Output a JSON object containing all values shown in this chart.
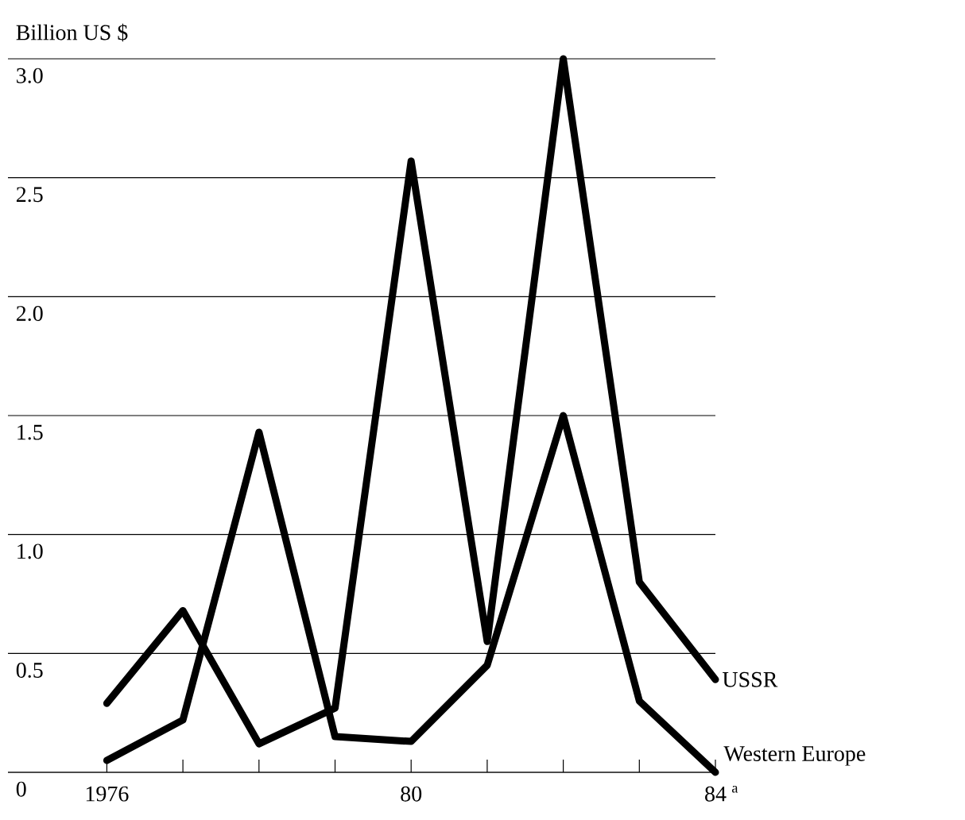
{
  "chart_data": {
    "type": "line",
    "ylabel": "Billion US $",
    "x": [
      1976,
      1977,
      1978,
      1979,
      1980,
      1981,
      1982,
      1983,
      1984
    ],
    "series": [
      {
        "name": "USSR",
        "color": "#000000",
        "values": [
          0.29,
          0.68,
          0.12,
          0.27,
          2.57,
          0.55,
          3.0,
          0.8,
          0.39
        ]
      },
      {
        "name": "Western Europe",
        "color": "#000000",
        "values": [
          0.05,
          0.22,
          1.43,
          0.15,
          0.13,
          0.45,
          1.5,
          0.3,
          0.0
        ]
      }
    ],
    "xlim": [
      1974.7,
      1984
    ],
    "ylim": [
      0,
      3.0
    ],
    "xticks": [
      {
        "value": 1976,
        "label": "1976"
      },
      {
        "value": 1977,
        "label": null
      },
      {
        "value": 1978,
        "label": null
      },
      {
        "value": 1979,
        "label": null
      },
      {
        "value": 1980,
        "label": "80"
      },
      {
        "value": 1981,
        "label": null
      },
      {
        "value": 1982,
        "label": null
      },
      {
        "value": 1983,
        "label": null
      },
      {
        "value": 1984,
        "label": "84"
      }
    ],
    "yticks": [
      0,
      {
        "value": 0.5,
        "label": "0.5"
      },
      {
        "value": 1.0,
        "label": "1.0"
      },
      {
        "value": 1.5,
        "label": "1.5"
      },
      {
        "value": 2.0,
        "label": "2.0"
      },
      {
        "value": 2.5,
        "label": "2.5"
      },
      {
        "value": 3.0,
        "label": "3.0"
      }
    ],
    "annotations": [
      "a"
    ],
    "grid": "y",
    "legend": false,
    "marker": "none",
    "line_style": "solid"
  }
}
